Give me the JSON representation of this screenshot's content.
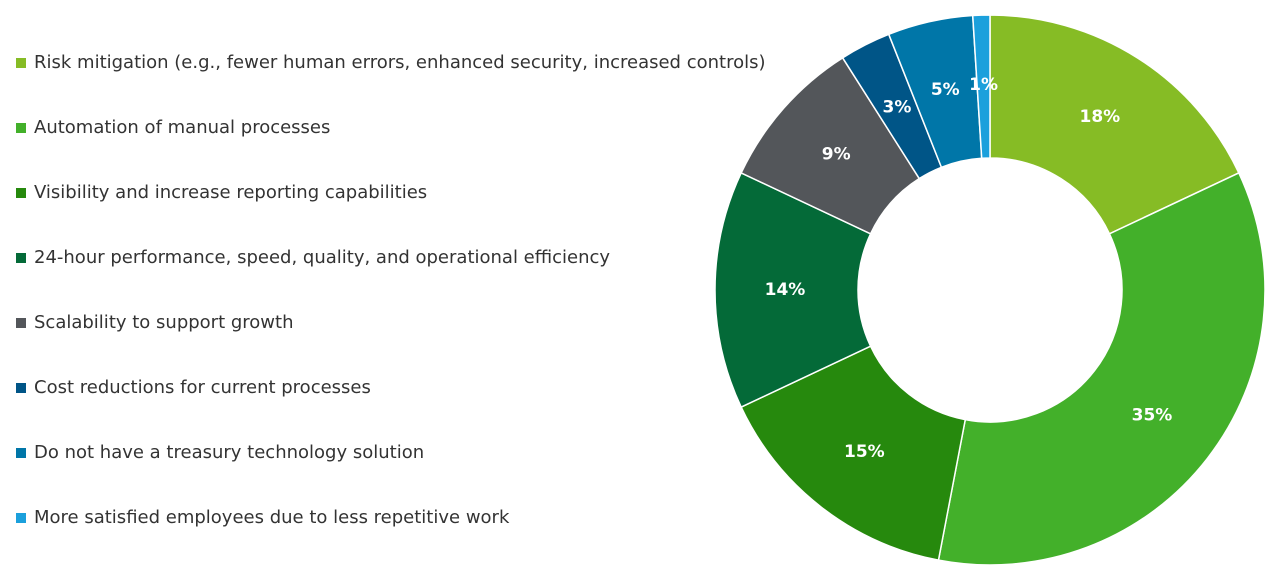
{
  "chart_data": {
    "type": "pie",
    "variant": "donut",
    "start": "top",
    "direction": "clockwise",
    "legend_position": "left",
    "categories": [
      "Risk mitigation (e.g., fewer human errors, enhanced security, increased controls)",
      "Automation of manual processes",
      "Visibility and increase reporting capabilities",
      "24-hour performance, speed, quality, and operational efficiency",
      "Scalability to support growth",
      "Cost reductions for current processes",
      "Do not have a treasury technology solution",
      "More satisfied employees due to less repetitive work"
    ],
    "values": [
      18,
      35,
      15,
      14,
      9,
      3,
      5,
      1
    ],
    "data_labels": [
      "18%",
      "35%",
      "15%",
      "14%",
      "9%",
      "3%",
      "5%",
      "1%"
    ],
    "colors": [
      "#86bc25",
      "#43b02a",
      "#26890d",
      "#046a38",
      "#53565a",
      "#005587",
      "#0076a8",
      "#1ba0dc"
    ]
  }
}
